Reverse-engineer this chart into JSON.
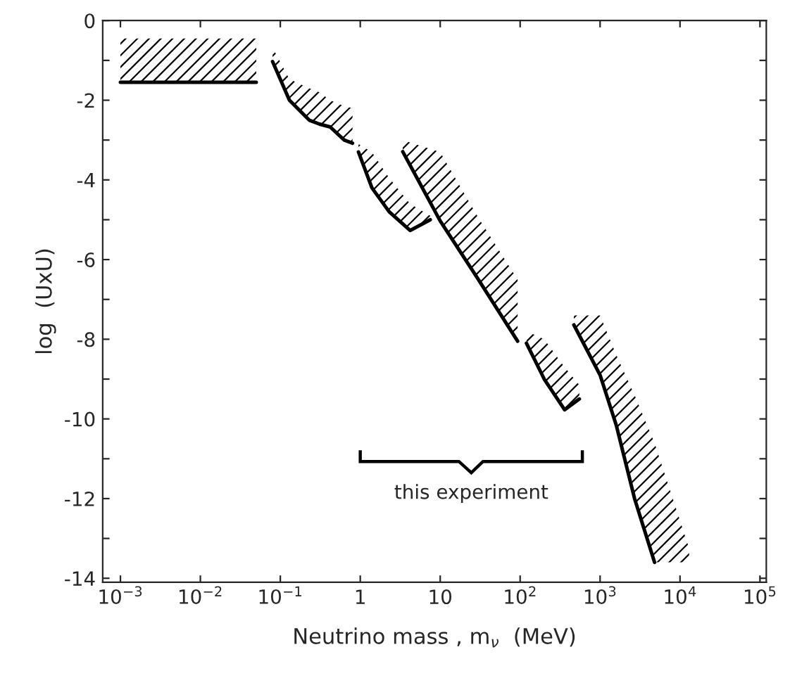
{
  "chart_data": {
    "type": "line",
    "xlabel": "Neutrino mass , m$_{ν}$  (MeV)",
    "ylabel": "log  (UxU)",
    "log": "x",
    "grid": false,
    "legend": false,
    "marker": "none",
    "line_style": "solid",
    "xlim": [
      0.0006,
      120000
    ],
    "ylim": [
      -14.1,
      0
    ],
    "xticks": [
      {
        "value": 0.001,
        "label": "10$^{−3}$"
      },
      {
        "value": 0.01,
        "label": "10$^{−2}$"
      },
      {
        "value": 0.1,
        "label": "10$^{−1}$"
      },
      1,
      10,
      {
        "value": 100,
        "label": "10$^{2}$"
      },
      {
        "value": 1000,
        "label": "10$^{3}$"
      },
      {
        "value": 10000,
        "label": "10$^{4}$"
      },
      {
        "value": 100000,
        "label": "10$^{5}$"
      }
    ],
    "yticks": [
      0,
      {
        "value": -1,
        "label": null
      },
      -2,
      {
        "value": -3,
        "label": null
      },
      -4,
      {
        "value": -5,
        "label": null
      },
      -6,
      {
        "value": -7,
        "label": null
      },
      -8,
      {
        "value": -9,
        "label": null
      },
      -10,
      {
        "value": -11,
        "label": null
      },
      -12,
      {
        "value": -13,
        "label": null
      },
      -14
    ],
    "series": [
      {
        "color": "#000000",
        "x": [
          0.001,
          0.003,
          0.01,
          0.05
        ],
        "values": [
          -1.55,
          -1.55,
          -1.55,
          -1.55
        ],
        "lower": [
          -1.55,
          -1.55,
          -1.55,
          -1.55
        ],
        "upper": [
          -0.45,
          -0.45,
          -0.45,
          -0.45
        ]
      },
      {
        "color": "#000000",
        "x": [
          0.08,
          0.13,
          0.23,
          0.31,
          0.42,
          0.63,
          0.8
        ],
        "values": [
          -1.03,
          -2.0,
          -2.5,
          -2.6,
          -2.67,
          -3.0,
          -3.08
        ],
        "lower": [
          -1.03,
          -2.0,
          -2.5,
          -2.6,
          -2.67,
          -3.0,
          -3.08
        ],
        "upper": [
          -0.68,
          -1.47,
          -1.7,
          -1.8,
          -2.0,
          -2.15,
          -2.2
        ]
      },
      {
        "color": "#000000",
        "x": [
          0.95,
          1.4,
          2.3,
          4.2,
          7.5
        ],
        "values": [
          -3.3,
          -4.2,
          -4.8,
          -5.27,
          -5.0
        ],
        "lower": [
          -3.3,
          -4.2,
          -4.8,
          -5.27,
          -5.0
        ],
        "upper": [
          -3.1,
          -3.3,
          -3.95,
          -4.6,
          -4.9
        ]
      },
      {
        "color": "#000000",
        "x": [
          3.4,
          10,
          30,
          93
        ],
        "values": [
          -3.29,
          -5.03,
          -6.5,
          -8.05
        ],
        "lower": [
          -3.29,
          -5.03,
          -6.5,
          -8.05
        ],
        "upper": [
          -3.0,
          -3.3,
          -4.95,
          -6.5
        ]
      },
      {
        "color": "#000000",
        "x": [
          120,
          200,
          360,
          550
        ],
        "values": [
          -8.1,
          -9.0,
          -9.77,
          -9.5
        ],
        "lower": [
          -8.1,
          -9.0,
          -9.77,
          -9.5
        ],
        "upper": [
          -7.8,
          -8.0,
          -8.7,
          -9.15
        ]
      },
      {
        "color": "#000000",
        "x": [
          470,
          1000,
          1600,
          2700,
          4800,
          13000
        ],
        "values": [
          -7.64,
          -8.9,
          -10.17,
          -12.0,
          -13.6,
          null
        ],
        "lower": [
          -7.64,
          -8.9,
          -10.17,
          -12.0,
          -13.6,
          -13.6
        ],
        "upper": [
          -7.4,
          -7.4,
          -8.4,
          -9.4,
          -10.6,
          -13.25
        ]
      }
    ],
    "annotations": [
      "this experiment"
    ]
  }
}
